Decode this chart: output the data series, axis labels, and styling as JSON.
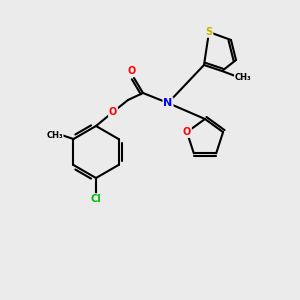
{
  "background_color": "#ebebeb",
  "bond_color": "#000000",
  "atom_colors": {
    "S": "#c8b400",
    "O": "#ff0000",
    "N": "#0000ff",
    "Cl": "#00bb00",
    "C": "#000000"
  },
  "figsize": [
    3.0,
    3.0
  ],
  "dpi": 100
}
